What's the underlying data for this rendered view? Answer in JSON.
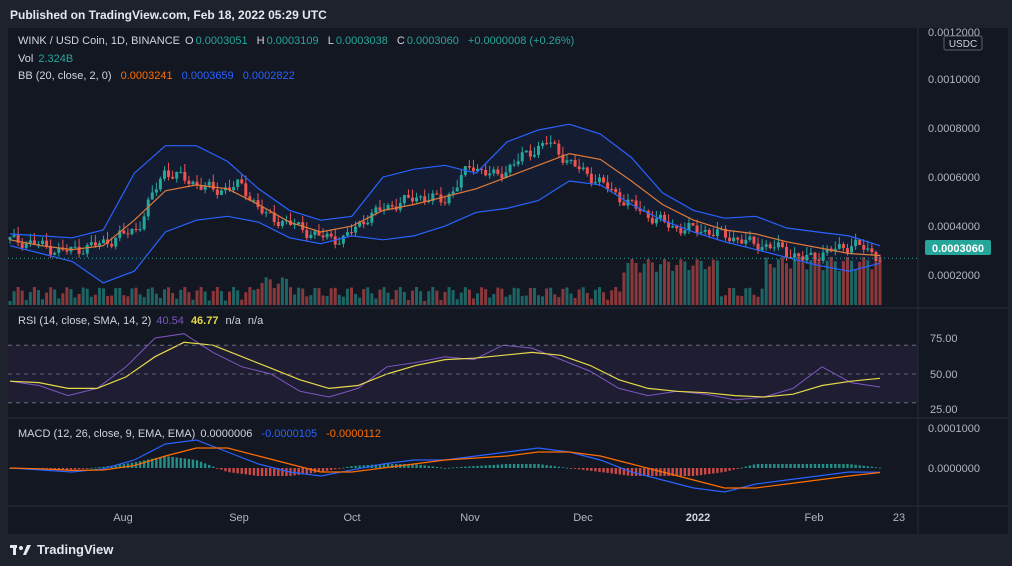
{
  "header": {
    "published": "Published on TradingView.com, Feb 18, 2022 05:29 UTC"
  },
  "footer": {
    "brand": "TradingView"
  },
  "colors": {
    "up": "#26a69a",
    "down": "#ef5350",
    "bb_upper": "#2962ff",
    "bb_basis": "#e07b39",
    "bb_lower": "#2962ff",
    "rsi": "#7e57c2",
    "rsi_sma": "#e6d84a",
    "macd": "#2962ff",
    "signal": "#ff6d00",
    "price_tag": "#26a69a"
  },
  "price_pane": {
    "symbol_line": "WINK / USD Coin, 1D, BINANCE",
    "O_label": "O",
    "O": "0.0003051",
    "H_label": "H",
    "H": "0.0003109",
    "L_label": "L",
    "L": "0.0003038",
    "C_label": "C",
    "C": "0.0003060",
    "change": "+0.0000008 (+0.26%)",
    "vol_label": "Vol",
    "vol": "2.324B",
    "bb_label": "BB (20, close, 2, 0)",
    "bb_basis": "0.0003241",
    "bb_upper": "0.0003659",
    "bb_lower": "0.0002822",
    "currency": "USDC",
    "last_price": "0.0003060",
    "ticks": [
      "0.0012000",
      "0.0010000",
      "0.0008000",
      "0.0006000",
      "0.0004000",
      "0.0002000"
    ]
  },
  "rsi_pane": {
    "label": "RSI (14, close, SMA, 14, 2)",
    "rsi": "40.54",
    "sma": "46.77",
    "na1": "n/a",
    "na2": "n/a",
    "ticks": [
      "75.00",
      "50.00",
      "25.00"
    ]
  },
  "macd_pane": {
    "label": "MACD (12, 26, close, 9, EMA, EMA)",
    "hist": "0.0000006",
    "macd": "-0.0000105",
    "signal": "-0.0000112",
    "ticks": [
      "0.0001000",
      "0.0000000"
    ]
  },
  "time_axis": [
    "Aug",
    "Sep",
    "Oct",
    "Nov",
    "Dec",
    "2022",
    "Feb",
    "23"
  ],
  "chart_data": {
    "type": "candlestick",
    "x_range": [
      "2021-07-14",
      "2022-02-23"
    ],
    "y_range": [
      0.0001,
      0.0012
    ],
    "candles_sample_close": [
      0.0004,
      0.00038,
      0.00034,
      0.00036,
      0.0004,
      0.00046,
      0.00075,
      0.0007,
      0.00065,
      0.00068,
      0.00052,
      0.00048,
      0.00042,
      0.0004,
      0.00052,
      0.00058,
      0.00062,
      0.0006,
      0.00078,
      0.00072,
      0.00082,
      0.0009,
      0.00078,
      0.0007,
      0.0006,
      0.00052,
      0.00046,
      0.00045,
      0.00042,
      0.00038,
      0.00036,
      0.0003,
      0.00034,
      0.00038,
      0.00031
    ],
    "series": [
      {
        "name": "BB upper",
        "values": [
          0.00043,
          0.00042,
          0.00041,
          0.00045,
          0.00074,
          0.00088,
          0.00088,
          0.0008,
          0.00066,
          0.00055,
          0.0005,
          0.00052,
          0.00072,
          0.00076,
          0.00078,
          0.00074,
          0.0009,
          0.00096,
          0.00099,
          0.00094,
          0.00082,
          0.00064,
          0.00055,
          0.00051,
          0.00052,
          0.00046,
          0.00044,
          0.00042,
          0.00037
        ]
      },
      {
        "name": "BB basis",
        "values": [
          0.0004,
          0.00037,
          0.00035,
          0.00037,
          0.0005,
          0.00065,
          0.00068,
          0.00066,
          0.00058,
          0.00049,
          0.00044,
          0.00047,
          0.00055,
          0.00058,
          0.00062,
          0.00066,
          0.00072,
          0.00078,
          0.00084,
          0.00081,
          0.0007,
          0.00058,
          0.0005,
          0.00045,
          0.00043,
          0.00039,
          0.00036,
          0.00033,
          0.00032
        ]
      },
      {
        "name": "BB lower",
        "values": [
          0.00037,
          0.00033,
          0.00029,
          0.00018,
          0.00024,
          0.00044,
          0.0005,
          0.00052,
          0.00049,
          0.00041,
          0.00038,
          0.00042,
          0.0004,
          0.00042,
          0.00047,
          0.00054,
          0.00056,
          0.0006,
          0.0007,
          0.00068,
          0.00058,
          0.0005,
          0.00044,
          0.00039,
          0.00035,
          0.00031,
          0.00027,
          0.00024,
          0.00028
        ]
      }
    ],
    "rsi_values": [
      45,
      42,
      35,
      40,
      55,
      75,
      78,
      65,
      55,
      50,
      38,
      34,
      40,
      55,
      58,
      62,
      60,
      70,
      68,
      60,
      52,
      40,
      35,
      38,
      36,
      32,
      34,
      40,
      55,
      44,
      41
    ],
    "rsi_sma_values": [
      45,
      44,
      40,
      40,
      48,
      62,
      72,
      70,
      62,
      54,
      46,
      40,
      42,
      50,
      56,
      60,
      61,
      63,
      65,
      63,
      56,
      46,
      40,
      38,
      37,
      35,
      34,
      36,
      42,
      45,
      47
    ],
    "macd_values": [
      0.0,
      -5e-06,
      -1e-05,
      -2e-06,
      2e-05,
      6e-05,
      7e-05,
      4e-05,
      1e-05,
      -1e-05,
      -2e-05,
      -5e-06,
      1e-05,
      2e-05,
      2e-05,
      3e-05,
      4e-05,
      5e-05,
      4e-05,
      2e-05,
      -1e-05,
      -3e-05,
      -5e-05,
      -6e-05,
      -4e-05,
      -3e-05,
      -2e-05,
      -1e-05,
      -1.05e-05
    ],
    "signal_values": [
      0.0,
      -2e-06,
      -6e-06,
      -5e-06,
      6e-06,
      3e-05,
      5e-05,
      5e-05,
      3e-05,
      1e-05,
      -1e-05,
      -1e-05,
      0.0,
      1e-05,
      2e-05,
      2.5e-05,
      3e-05,
      4e-05,
      4e-05,
      3e-05,
      1e-05,
      -1e-05,
      -3e-05,
      -5e-05,
      -5e-05,
      -4e-05,
      -3e-05,
      -2e-05,
      -1.12e-05
    ]
  }
}
